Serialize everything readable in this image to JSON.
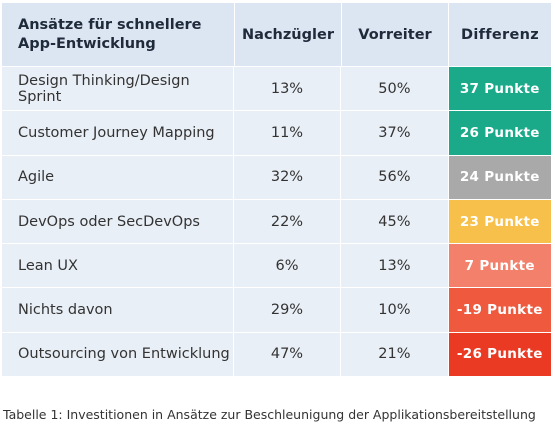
{
  "table": {
    "headers": {
      "approach_line1": "Ansätze für schnellere",
      "approach_line2": "App-Entwicklung",
      "laggards": "Nachzügler",
      "leaders": "Vorreiter",
      "difference": "Differenz"
    },
    "rows": [
      {
        "approach": "Design Thinking/Design Sprint",
        "laggards": "13%",
        "leaders": "50%",
        "difference": "37 Punkte",
        "color": "#1aa989"
      },
      {
        "approach": "Customer Journey Mapping",
        "laggards": "11%",
        "leaders": "37%",
        "difference": "26 Punkte",
        "color": "#1aa989"
      },
      {
        "approach": "Agile",
        "laggards": "32%",
        "leaders": "56%",
        "difference": "24 Punkte",
        "color": "#a9a9a9"
      },
      {
        "approach": "DevOps oder SecDevOps",
        "laggards": "22%",
        "leaders": "45%",
        "difference": "23 Punkte",
        "color": "#f6c04a"
      },
      {
        "approach": "Lean UX",
        "laggards": "6%",
        "leaders": "13%",
        "difference": "7 Punkte",
        "color": "#f2806a"
      },
      {
        "approach": "Nichts davon",
        "laggards": "29%",
        "leaders": "10%",
        "difference": "-19 Punkte",
        "color": "#ef5a3f"
      },
      {
        "approach": "Outsourcing von Entwicklung",
        "laggards": "47%",
        "leaders": "21%",
        "difference": "-26 Punkte",
        "color": "#ea3a23"
      }
    ]
  },
  "caption": "Tabelle 1: Investitionen in Ansätze zur Beschleunigung der Applikationsbereitstellung"
}
